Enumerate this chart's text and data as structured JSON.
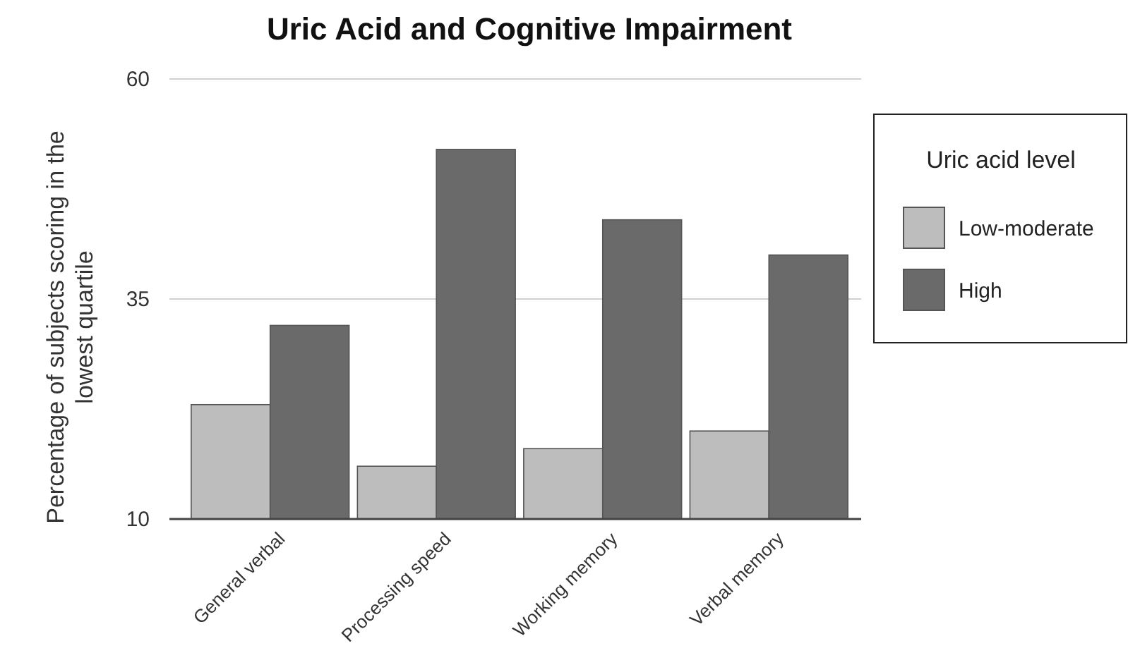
{
  "chart_data": {
    "type": "bar",
    "title": "Uric Acid and Cognitive Impairment",
    "ylabel": "Percentage of subjects scoring in the lowest quartile",
    "legend_title": "Uric acid level",
    "categories": [
      "General verbal",
      "Processing speed",
      "Working memory",
      "Verbal memory"
    ],
    "series": [
      {
        "name": "Low-moderate",
        "color": "#bdbdbd",
        "values": [
          23,
          16,
          18,
          20
        ]
      },
      {
        "name": "High",
        "color": "#6a6a6a",
        "values": [
          32,
          52,
          44,
          40
        ]
      }
    ],
    "ylim": [
      10,
      60
    ],
    "yticks": [
      10,
      35,
      60
    ],
    "grid": "y",
    "legend": "right"
  }
}
